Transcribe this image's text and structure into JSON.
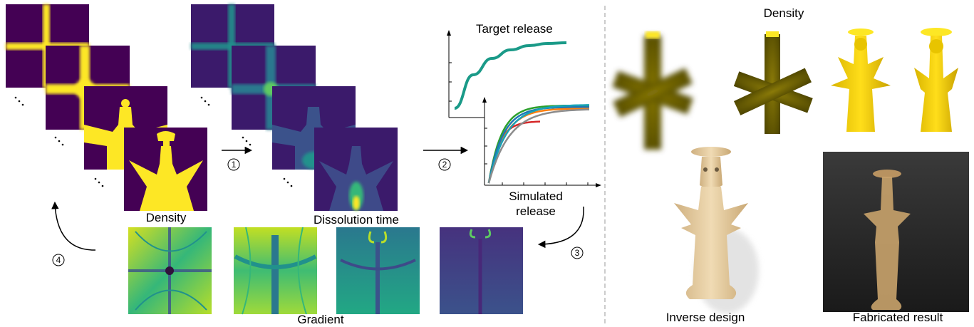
{
  "labels": {
    "density": "Density",
    "dissolution_time": "Dissolution time",
    "gradient": "Gradient",
    "target_release": "Target release",
    "simulated_release": "Simulated",
    "simulated_release_2": "release",
    "density_right": "Density",
    "inverse_design": "Inverse design",
    "fabricated_result": "Fabricated result"
  },
  "steps": [
    "1",
    "2",
    "3",
    "4"
  ],
  "ellipsis": "⋱",
  "colors": {
    "viridis_dark": "#440154",
    "viridis_mid": "#21918c",
    "viridis_yellow": "#fde725",
    "target_curve": "#1a9a88",
    "render_yellow": "#e8c400",
    "print_beige": "#e3c99c"
  },
  "chart_data": {
    "type": "line",
    "target": {
      "title": "Target release",
      "series": [
        {
          "values": [
            0.08,
            0.55,
            0.78,
            0.9,
            0.96,
            0.99,
            1.0
          ]
        }
      ]
    },
    "simulated": {
      "title": "Simulated release",
      "series": [
        {
          "color": "#d62728"
        },
        {
          "color": "#ff7f0e"
        },
        {
          "color": "#2ca02c"
        },
        {
          "color": "#1f77b4"
        },
        {
          "color": "#17a2b8"
        },
        {
          "color": "#8c8c8c"
        }
      ]
    }
  }
}
